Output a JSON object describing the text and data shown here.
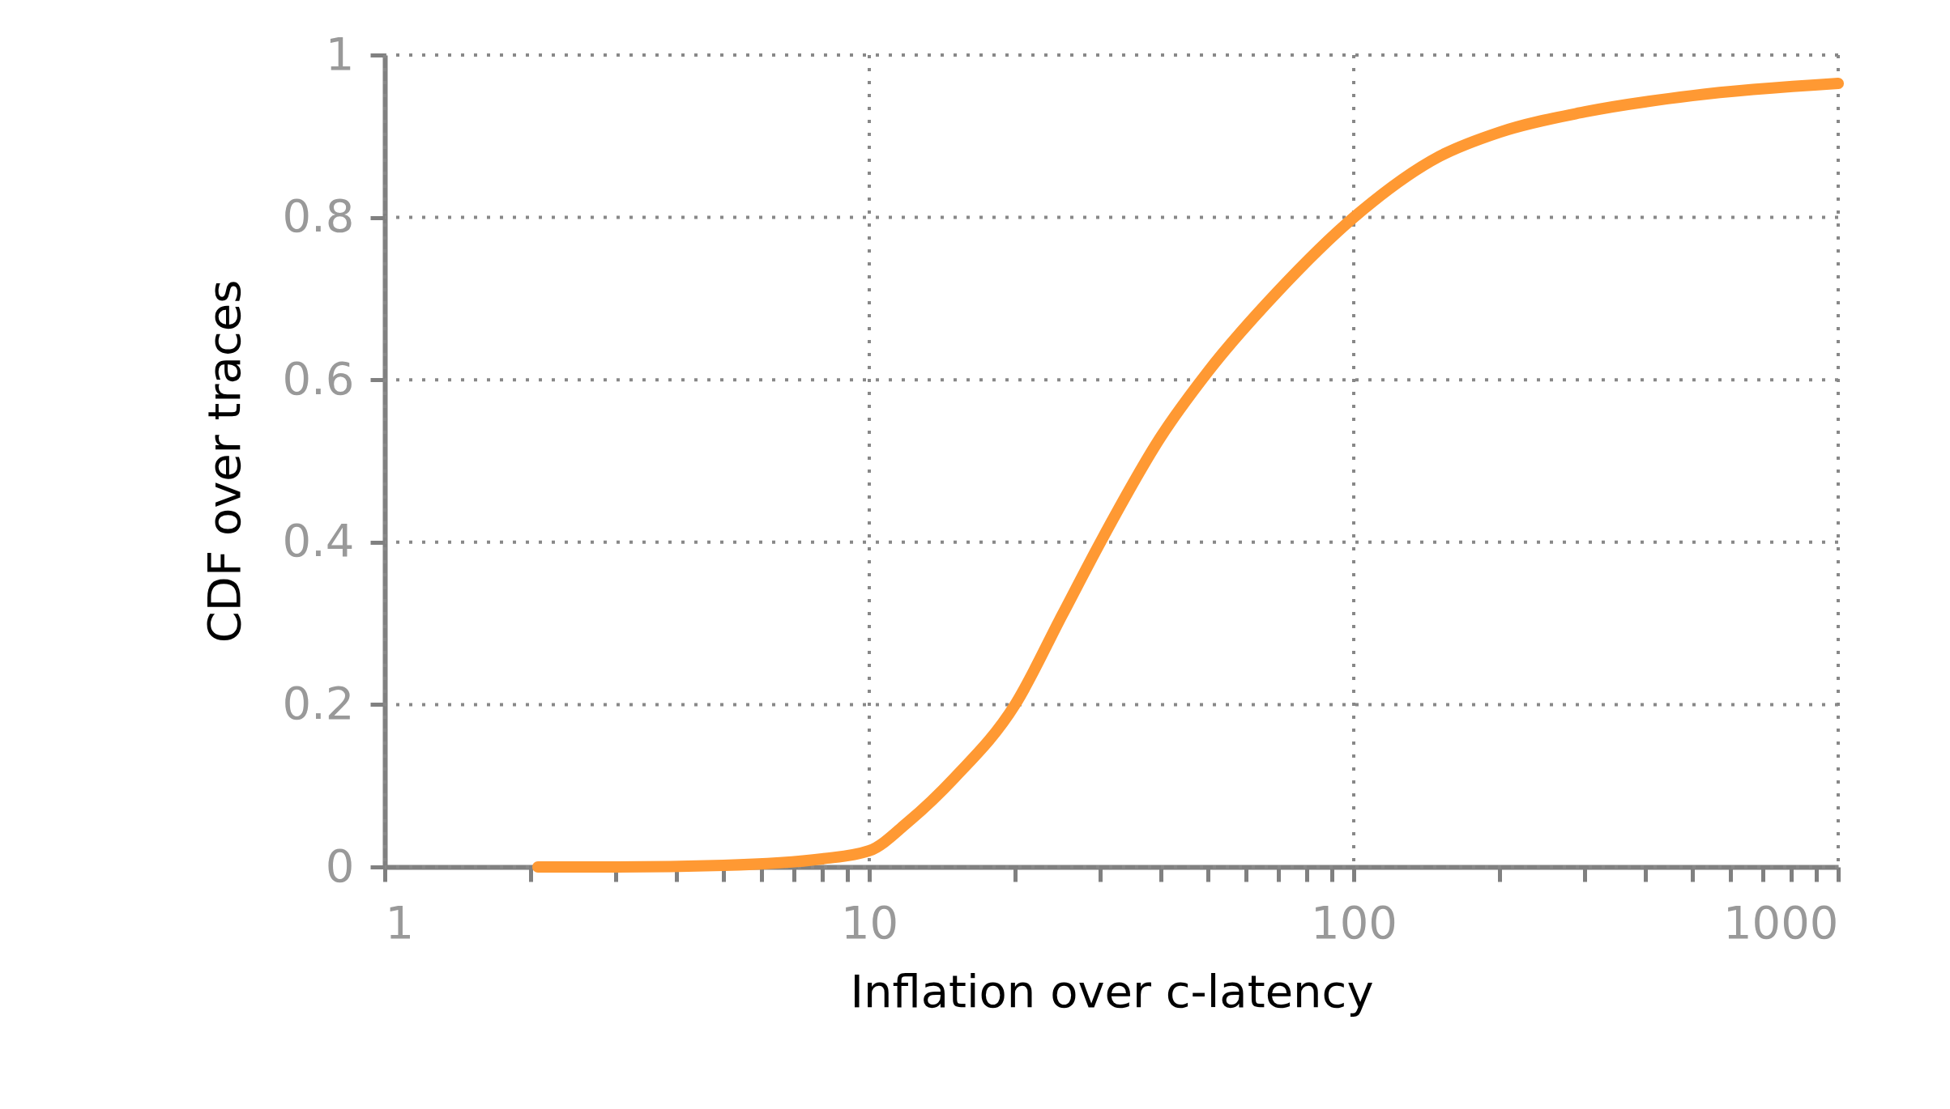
{
  "chart_data": {
    "type": "line",
    "xlabel": "Inflation over c-latency",
    "ylabel": "CDF over traces",
    "log": "x",
    "grid": true,
    "line_style": "solid",
    "marker": "none",
    "xlim": [
      1,
      1000
    ],
    "ylim": [
      0,
      1
    ],
    "xticks": [
      1,
      10,
      100,
      1000
    ],
    "yticks": [
      0,
      0.2,
      0.4,
      0.6,
      0.8,
      1
    ],
    "series": [
      {
        "color": "#ff9933",
        "x": [
          2.07,
          3,
          5,
          8,
          10,
          12,
          15,
          20,
          25,
          30,
          40,
          50,
          70,
          100,
          150,
          200,
          300,
          500,
          1000
        ],
        "values": [
          0,
          0,
          0.002,
          0.01,
          0.02,
          0.055,
          0.11,
          0.2,
          0.31,
          0.4,
          0.53,
          0.61,
          0.71,
          0.8,
          0.875,
          0.905,
          0.93,
          0.95,
          0.965
        ]
      }
    ]
  }
}
